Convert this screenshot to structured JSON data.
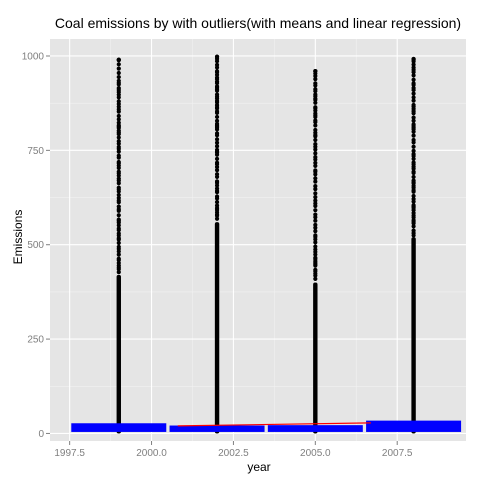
{
  "chart_data": {
    "type": "scatter",
    "title": "Coal emissions by with outliers(with means and linear regression)",
    "xlabel": "year",
    "ylabel": "Emissions",
    "xlim": [
      1996.9,
      2009.6
    ],
    "ylim": [
      -20,
      1045
    ],
    "x_ticks": [
      1997.5,
      2000.0,
      2002.5,
      2005.0,
      2007.5
    ],
    "x_tick_labels": [
      "1997.5",
      "2000.0",
      "2002.5",
      "2005.0",
      "2007.5"
    ],
    "y_ticks": [
      0,
      250,
      500,
      750,
      1000
    ],
    "y_tick_labels": [
      "0",
      "250",
      "500",
      "750",
      "1000"
    ],
    "grid": true,
    "colors": {
      "panel": "#e5e5e5",
      "grid": "#ffffff",
      "points": "#000000",
      "boxes": "#0000ff",
      "regression": "#ff0000"
    },
    "series": [
      {
        "kind": "points",
        "groups": [
          {
            "x": 1999,
            "max": 990,
            "dense_to": 420
          },
          {
            "x": 2002,
            "max": 998,
            "dense_to": 560
          },
          {
            "x": 2005,
            "max": 960,
            "dense_to": 400
          },
          {
            "x": 2008,
            "max": 992,
            "dense_to": 520
          }
        ]
      },
      {
        "kind": "boxes",
        "values": [
          {
            "x": 1999,
            "low": 4,
            "high": 27
          },
          {
            "x": 2002,
            "low": 4,
            "high": 21
          },
          {
            "x": 2005,
            "low": 4,
            "high": 22
          },
          {
            "x": 2008,
            "low": 4,
            "high": 34
          }
        ]
      },
      {
        "kind": "regression",
        "values": [
          {
            "x": 2000.8,
            "y": 20
          },
          {
            "x": 2006.7,
            "y": 28
          }
        ]
      }
    ]
  }
}
